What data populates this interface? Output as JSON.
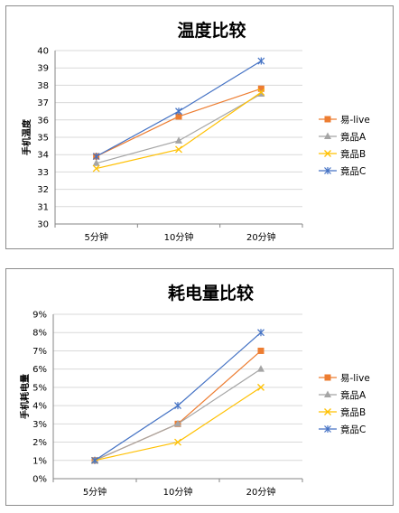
{
  "chart_data": [
    {
      "type": "line",
      "title": "温度比较",
      "ylabel": "手机温度",
      "categories": [
        "5分钟",
        "10分钟",
        "20分钟"
      ],
      "ylim": [
        30,
        40
      ],
      "yticks": [
        "30",
        "31",
        "32",
        "33",
        "34",
        "35",
        "36",
        "37",
        "38",
        "39",
        "40"
      ],
      "grid": true,
      "legend": "right",
      "series": [
        {
          "name": "易-live",
          "values": [
            33.9,
            36.2,
            37.8
          ],
          "color": "#ED7D31",
          "marker": "square"
        },
        {
          "name": "竟品A",
          "values": [
            33.5,
            34.8,
            37.5
          ],
          "color": "#A5A5A5",
          "marker": "triangle"
        },
        {
          "name": "竟品B",
          "values": [
            33.2,
            34.3,
            37.6
          ],
          "color": "#FFC000",
          "marker": "x"
        },
        {
          "name": "竟品C",
          "values": [
            33.9,
            36.5,
            39.4
          ],
          "color": "#4472C4",
          "marker": "star"
        }
      ]
    },
    {
      "type": "line",
      "title": "耗电量比较",
      "ylabel": "手机耗电量",
      "categories": [
        "5分钟",
        "10分钟",
        "20分钟"
      ],
      "ylim": [
        0,
        9
      ],
      "yticks": [
        "0%",
        "1%",
        "2%",
        "3%",
        "4%",
        "5%",
        "6%",
        "7%",
        "8%",
        "9%"
      ],
      "grid": true,
      "legend": "right",
      "series": [
        {
          "name": "易-live",
          "values": [
            1,
            3,
            7
          ],
          "color": "#ED7D31",
          "marker": "square"
        },
        {
          "name": "竟品A",
          "values": [
            1,
            3,
            6
          ],
          "color": "#A5A5A5",
          "marker": "triangle"
        },
        {
          "name": "竟品B",
          "values": [
            1,
            2,
            5
          ],
          "color": "#FFC000",
          "marker": "x"
        },
        {
          "name": "竟品C",
          "values": [
            1,
            4,
            8
          ],
          "color": "#4472C4",
          "marker": "star"
        }
      ]
    }
  ]
}
